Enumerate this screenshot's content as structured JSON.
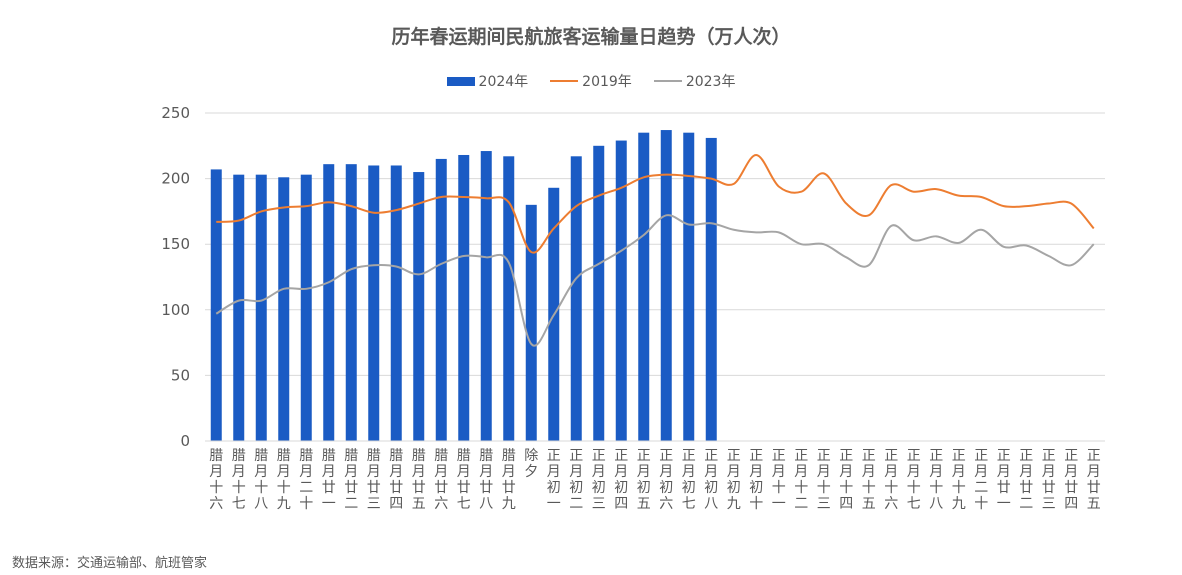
{
  "chart_data": {
    "type": "bar",
    "title": "历年春运期间民航旅客运输量日趋势（万人次）",
    "categories": [
      "腊月十六",
      "腊月十七",
      "腊月十八",
      "腊月十九",
      "腊月二十",
      "腊月廿一",
      "腊月廿二",
      "腊月廿三",
      "腊月廿四",
      "腊月廿五",
      "腊月廿六",
      "腊月廿七",
      "腊月廿八",
      "腊月廿九",
      "除夕",
      "正月初一",
      "正月初二",
      "正月初三",
      "正月初四",
      "正月初五",
      "正月初六",
      "正月初七",
      "正月初八",
      "正月初九",
      "正月初十",
      "正月十一",
      "正月十二",
      "正月十三",
      "正月十四",
      "正月十五",
      "正月十六",
      "正月十七",
      "正月十八",
      "正月十九",
      "正月二十",
      "正月廿一",
      "正月廿二",
      "正月廿三",
      "正月廿四",
      "正月廿五"
    ],
    "ylim": [
      0,
      250
    ],
    "yticks": [
      0,
      50,
      100,
      150,
      200,
      250
    ],
    "grid": true,
    "legend_position": "top-center",
    "series": [
      {
        "name": "2024年",
        "type": "bar",
        "color": "#1a5bc4",
        "values": [
          207,
          203,
          203,
          201,
          203,
          211,
          211,
          210,
          210,
          205,
          215,
          218,
          221,
          217,
          180,
          193,
          217,
          225,
          229,
          235,
          237,
          235,
          231,
          null,
          null,
          null,
          null,
          null,
          null,
          null,
          null,
          null,
          null,
          null,
          null,
          null,
          null,
          null,
          null,
          null
        ]
      },
      {
        "name": "2019年",
        "type": "line",
        "color": "#ed7d31",
        "values": [
          167,
          168,
          175,
          178,
          179,
          182,
          179,
          174,
          176,
          181,
          186,
          186,
          185,
          182,
          144,
          162,
          179,
          187,
          193,
          201,
          203,
          202,
          200,
          196,
          218,
          194,
          190,
          204,
          181,
          172,
          195,
          190,
          192,
          187,
          186,
          179,
          179,
          181,
          181,
          162
        ]
      },
      {
        "name": "2023年",
        "type": "line",
        "color": "#a5a5a5",
        "values": [
          97,
          107,
          107,
          116,
          116,
          121,
          131,
          134,
          133,
          127,
          135,
          141,
          140,
          136,
          74,
          96,
          124,
          135,
          145,
          157,
          172,
          165,
          166,
          161,
          159,
          159,
          150,
          150,
          140,
          134,
          164,
          153,
          156,
          151,
          161,
          148,
          149,
          141,
          134,
          150
        ]
      }
    ]
  },
  "legend": {
    "items": [
      {
        "label": "2024年",
        "color": "#1a5bc4",
        "kind": "bar"
      },
      {
        "label": "2019年",
        "color": "#ed7d31",
        "kind": "line"
      },
      {
        "label": "2023年",
        "color": "#a5a5a5",
        "kind": "line"
      }
    ]
  },
  "source": "数据来源：交通运输部、航班管家"
}
